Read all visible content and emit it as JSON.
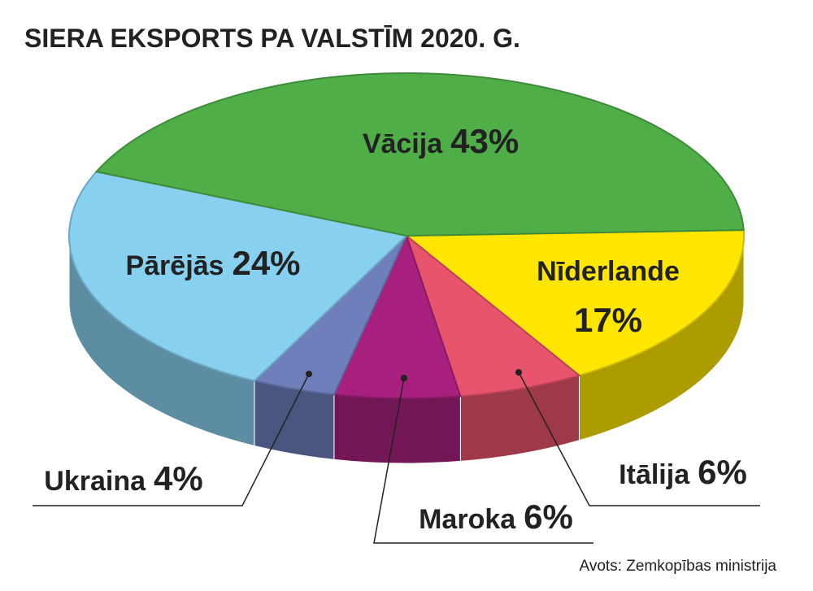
{
  "chart_data": {
    "type": "pie",
    "title": "SIERA EKSPORTS PA VALSTĪM 2020. G.",
    "categories": [
      "Nīderlande",
      "Itālija",
      "Maroka",
      "Ukraina",
      "Pārējās",
      "Vācija"
    ],
    "values": [
      17,
      6,
      6,
      4,
      24,
      43
    ],
    "value_labels": [
      "17%",
      "6%",
      "6%",
      "4%",
      "24%",
      "43%"
    ],
    "colors": [
      "#ffe600",
      "#e8546c",
      "#a8207e",
      "#6f7fbc",
      "#88d0f0",
      "#4fae48"
    ],
    "source": "Avots: Zemkopības ministrija"
  }
}
